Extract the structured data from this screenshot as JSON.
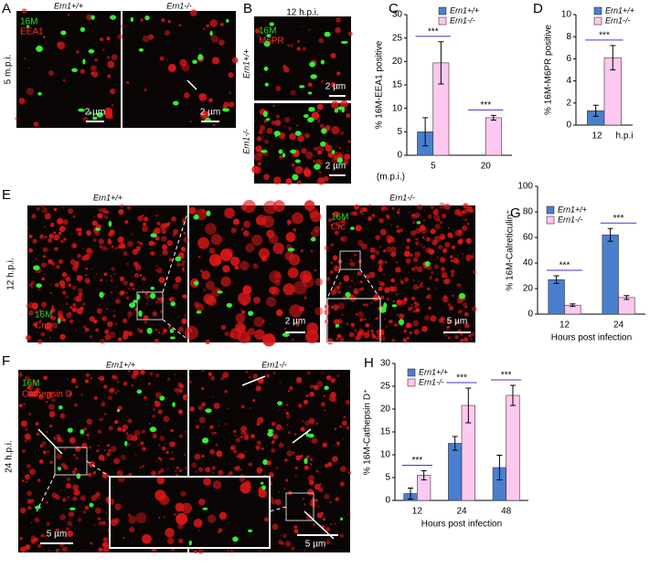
{
  "panels": {
    "A": {
      "letter": "A",
      "left": "Ern1+/+",
      "right": "Ern1-/-",
      "stain1": "16M",
      "stain2": "EEA1",
      "time": "5 m.p.i.",
      "scale1": "2 µm",
      "scale2": "2 µm"
    },
    "B": {
      "letter": "B",
      "time": "12 h.p.i.",
      "stain1": "16M",
      "stain2": "M6PR",
      "top": "Ern1+/+",
      "bottom": "Ern1-/-",
      "scale1": "2 µm",
      "scale2": "2 µm"
    },
    "C": {
      "letter": "C"
    },
    "D": {
      "letter": "D"
    },
    "E": {
      "letter": "E",
      "left": "Ern1+/+",
      "right": "Ern1-/-",
      "time": "12 h.p.i.",
      "stain1": "16M",
      "stain2": "Crc",
      "stain3": "16M",
      "stain4": "Crc",
      "scale1": "2 µm",
      "scale2": "5 µm"
    },
    "F": {
      "letter": "F",
      "left": "Ern1+/+",
      "right": "Ern1-/-",
      "stain1": "16M",
      "stain2": "Cathepsin D",
      "time": "24 h.p.i.",
      "scale1": "5 µm",
      "scale2": "5 µm"
    },
    "G": {
      "letter": "G"
    },
    "H": {
      "letter": "H"
    }
  },
  "chart_data": [
    {
      "type": "bar",
      "ylabel": "% 16M-EEA1 positive",
      "xlabel": "(m.p.i.)",
      "categories": [
        "5",
        "20"
      ],
      "series": [
        {
          "name": "Ern1+/+",
          "color": "#4a7fcf",
          "values": [
            5,
            0
          ],
          "errors": [
            3,
            0
          ]
        },
        {
          "name": "Ern1-/-",
          "color": "#ffc8f0",
          "values": [
            19.7,
            8
          ],
          "errors": [
            4.5,
            0.5
          ]
        }
      ],
      "ylim": [
        0,
        30
      ],
      "yticks": [
        0,
        5,
        10,
        15,
        20,
        25,
        30
      ],
      "annotations": [
        "***",
        "***"
      ]
    },
    {
      "type": "bar",
      "ylabel": "% 16M-M6PR positive",
      "xlabel": "h.p.i",
      "categories": [
        "12"
      ],
      "series": [
        {
          "name": "Ern1+/+",
          "color": "#4a7fcf",
          "values": [
            1.3
          ],
          "errors": [
            0.5
          ]
        },
        {
          "name": "Ern1-/-",
          "color": "#ffc8f0",
          "values": [
            6.1
          ],
          "errors": [
            1.1
          ]
        }
      ],
      "ylim": [
        0,
        10
      ],
      "yticks": [
        0,
        2,
        4,
        6,
        8,
        10
      ],
      "annotations": [
        "***"
      ]
    },
    {
      "type": "bar",
      "ylabel": "% 16M-Calreticulin⁺",
      "xlabel": "Hours post infection",
      "categories": [
        "12",
        "24"
      ],
      "series": [
        {
          "name": "Ern1+/+",
          "color": "#4a7fcf",
          "values": [
            27,
            62
          ],
          "errors": [
            3,
            5
          ]
        },
        {
          "name": "Ern1-/-",
          "color": "#ffc8f0",
          "values": [
            7,
            13
          ],
          "errors": [
            1,
            1.5
          ]
        }
      ],
      "ylim": [
        0,
        100
      ],
      "yticks": [
        0,
        20,
        40,
        60,
        80,
        100
      ],
      "annotations": [
        "***",
        "***"
      ]
    },
    {
      "type": "bar",
      "ylabel": "% 16M-Cathepsin D⁺",
      "xlabel": "Hours post infection",
      "categories": [
        "12",
        "24",
        "48"
      ],
      "series": [
        {
          "name": "Ern1+/+",
          "color": "#4a7fcf",
          "values": [
            1.5,
            12.5,
            7.2
          ],
          "errors": [
            1.2,
            1.5,
            2.7
          ]
        },
        {
          "name": "Ern1-/-",
          "color": "#ffc8f0",
          "values": [
            5.5,
            20.8,
            23
          ],
          "errors": [
            1,
            3.8,
            2.2
          ]
        }
      ],
      "ylim": [
        0,
        30
      ],
      "yticks": [
        0,
        5,
        10,
        15,
        20,
        25,
        30
      ],
      "annotations": [
        "***",
        "***",
        "***"
      ]
    }
  ]
}
